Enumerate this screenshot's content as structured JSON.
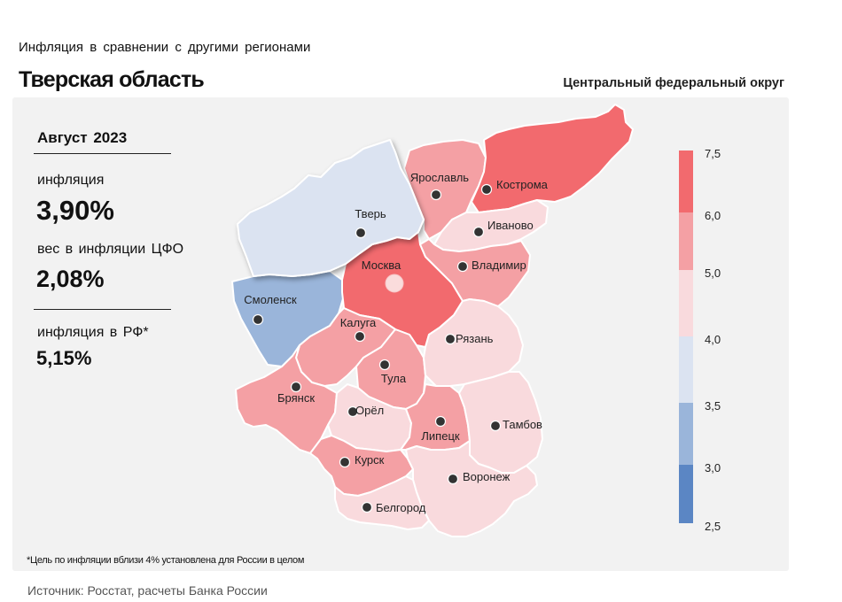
{
  "header": {
    "subtitle": "Инфляция  в сравнении  с другими  регионами",
    "title": "Тверская область",
    "district": "Центральный федеральный округ"
  },
  "stats": {
    "period": "Август 2023",
    "inflation_label": "инфляция",
    "inflation_value": "3,90%",
    "weight_label": "вес в инфляции  ЦФО",
    "weight_value": "2,08%",
    "rf_label": "инфляция  в РФ*",
    "rf_value": "5,15%"
  },
  "legend": {
    "ticks": [
      "7,5",
      "6,0",
      "5,0",
      "4,0",
      "3,5",
      "3,0",
      "2,5"
    ],
    "bins": [
      {
        "from": 6.0,
        "to": 7.5,
        "color": "#f26a6e"
      },
      {
        "from": 5.0,
        "to": 6.0,
        "color": "#f4a0a4"
      },
      {
        "from": 4.0,
        "to": 5.0,
        "color": "#f9dadd"
      },
      {
        "from": 3.5,
        "to": 4.0,
        "color": "#dbe3f1"
      },
      {
        "from": 3.0,
        "to": 3.5,
        "color": "#9ab5da"
      },
      {
        "from": 2.5,
        "to": 3.0,
        "color": "#5b86c4"
      }
    ]
  },
  "regions": [
    {
      "name": "Тверь",
      "bin": "3.5-4.0",
      "color": "#dbe3f1",
      "highlighted": true
    },
    {
      "name": "Смоленск",
      "bin": "3.0-3.5",
      "color": "#9ab5da"
    },
    {
      "name": "Москва",
      "bin": "6.0-7.5",
      "color": "#f26a6e"
    },
    {
      "name": "Ярославль",
      "bin": "5.0-6.0",
      "color": "#f4a0a4"
    },
    {
      "name": "Кострома",
      "bin": "6.0-7.5",
      "color": "#f26a6e"
    },
    {
      "name": "Иваново",
      "bin": "4.0-5.0",
      "color": "#f9dadd"
    },
    {
      "name": "Владимир",
      "bin": "5.0-6.0",
      "color": "#f4a0a4"
    },
    {
      "name": "Калуга",
      "bin": "5.0-6.0",
      "color": "#f4a0a4"
    },
    {
      "name": "Тула",
      "bin": "5.0-6.0",
      "color": "#f4a0a4"
    },
    {
      "name": "Рязань",
      "bin": "4.0-5.0",
      "color": "#f9dadd"
    },
    {
      "name": "Брянск",
      "bin": "5.0-6.0",
      "color": "#f4a0a4"
    },
    {
      "name": "Орёл",
      "bin": "4.0-5.0",
      "color": "#f9dadd"
    },
    {
      "name": "Липецк",
      "bin": "5.0-6.0",
      "color": "#f4a0a4"
    },
    {
      "name": "Тамбов",
      "bin": "4.0-5.0",
      "color": "#f9dadd"
    },
    {
      "name": "Курск",
      "bin": "5.0-6.0",
      "color": "#f4a0a4"
    },
    {
      "name": "Воронеж",
      "bin": "4.0-5.0",
      "color": "#f9dadd"
    },
    {
      "name": "Белгород",
      "bin": "4.0-5.0",
      "color": "#f9dadd"
    }
  ],
  "footnote": "*Цель по инфляции вблизи 4% установлена для России в  целом",
  "source": "Источник: Росстат, расчеты Банка России"
}
